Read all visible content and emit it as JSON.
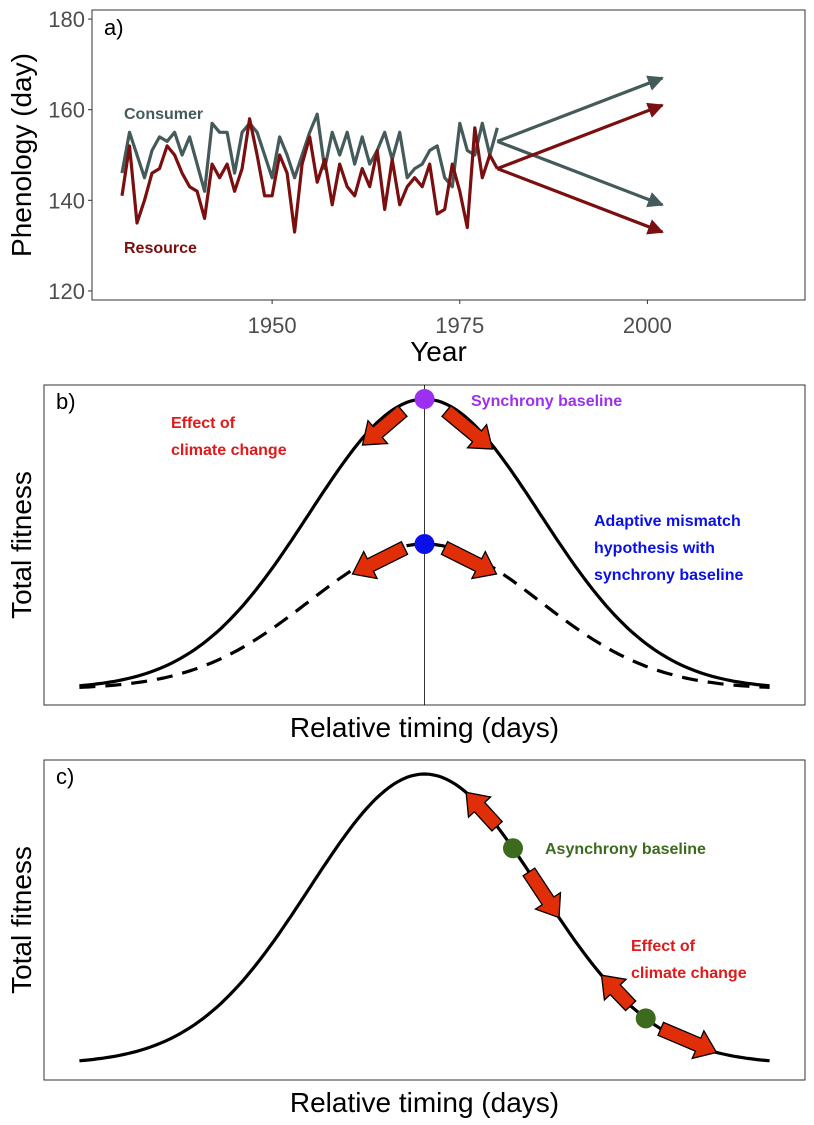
{
  "chart_data": [
    {
      "panel": "a)",
      "type": "line",
      "xlabel": "Year",
      "ylabel": "Phenology (day)",
      "xlim": [
        1926,
        2021
      ],
      "ylim": [
        118,
        182
      ],
      "xticks": [
        1950,
        1975,
        2000
      ],
      "yticks": [
        120,
        140,
        160,
        180
      ],
      "grid": false,
      "x": [
        1930,
        1931,
        1932,
        1933,
        1934,
        1935,
        1936,
        1937,
        1938,
        1939,
        1940,
        1941,
        1942,
        1943,
        1944,
        1945,
        1946,
        1947,
        1948,
        1949,
        1950,
        1951,
        1952,
        1953,
        1954,
        1955,
        1956,
        1957,
        1958,
        1959,
        1960,
        1961,
        1962,
        1963,
        1964,
        1965,
        1966,
        1967,
        1968,
        1969,
        1970,
        1971,
        1972,
        1973,
        1974,
        1975,
        1976,
        1977,
        1978,
        1979,
        1980
      ],
      "series": [
        {
          "name": "Consumer",
          "color": "#455a5a",
          "values": [
            146,
            155,
            150,
            145,
            151,
            154,
            153,
            155,
            150,
            154,
            148,
            142,
            157,
            155,
            155,
            146,
            155,
            157,
            155,
            150,
            145,
            154,
            150,
            145,
            150,
            155,
            159,
            147,
            155,
            150,
            155,
            148,
            154,
            148,
            151,
            155,
            149,
            155,
            145,
            147,
            148,
            151,
            152,
            145,
            143,
            157,
            151,
            150,
            157,
            150,
            156
          ],
          "projections": [
            {
              "from": [
                1980,
                153
              ],
              "to": [
                2002,
                167
              ]
            },
            {
              "from": [
                1980,
                153
              ],
              "to": [
                2002,
                139
              ]
            }
          ]
        },
        {
          "name": "Resource",
          "color": "#7b0f0f",
          "values": [
            141,
            152,
            135,
            140,
            146,
            147,
            152,
            150,
            146,
            143,
            142,
            136,
            148,
            145,
            148,
            142,
            147,
            158,
            150,
            141,
            141,
            150,
            146,
            133,
            148,
            154,
            144,
            149,
            139,
            148,
            143,
            141,
            147,
            143,
            151,
            138,
            149,
            139,
            143,
            145,
            143,
            148,
            137,
            138,
            148,
            142,
            134,
            156,
            145,
            150,
            147
          ],
          "projections": [
            {
              "from": [
                1980,
                147
              ],
              "to": [
                2002,
                161
              ]
            },
            {
              "from": [
                1980,
                147
              ],
              "to": [
                2002,
                133
              ]
            }
          ]
        }
      ]
    },
    {
      "panel": "b)",
      "type": "line",
      "xlabel": "Relative timing (days)",
      "ylabel": "Total fitness",
      "series": [
        {
          "label": "solid",
          "color": "#000000",
          "dash": false,
          "amplitude": 1.0,
          "sigma": 1.3
        },
        {
          "label": "dashed",
          "color": "#000000",
          "dash": true,
          "amplitude": 0.5,
          "sigma": 1.3
        }
      ],
      "annotations": [
        {
          "text": [
            "Effect of",
            "climate change"
          ],
          "color": "#e01a1a"
        },
        {
          "text": [
            "Synchrony baseline"
          ],
          "color": "#9b30f0"
        },
        {
          "text": [
            "Adaptive mismatch",
            "hypothesis with",
            "synchrony baseline"
          ],
          "color": "#0a10e8"
        }
      ],
      "points": [
        {
          "x": 0,
          "curve": "solid",
          "color": "#9b30f0"
        },
        {
          "x": 0,
          "curve": "dashed",
          "color": "#0a10e8"
        }
      ]
    },
    {
      "panel": "c)",
      "type": "line",
      "xlabel": "Relative timing (days)",
      "ylabel": "Total fitness",
      "series": [
        {
          "label": "solid",
          "color": "#000000",
          "dash": false,
          "amplitude": 1.0,
          "sigma": 1.3
        }
      ],
      "annotations": [
        {
          "text": [
            "Asynchrony baseline"
          ],
          "color": "#3d6b1e"
        },
        {
          "text": [
            "Effect of",
            "climate change"
          ],
          "color": "#e01a1a"
        }
      ],
      "points": [
        {
          "x": 1.0,
          "curve": "solid",
          "color": "#3d6b1e"
        },
        {
          "x": 2.5,
          "curve": "solid",
          "color": "#3d6b1e"
        }
      ]
    }
  ]
}
